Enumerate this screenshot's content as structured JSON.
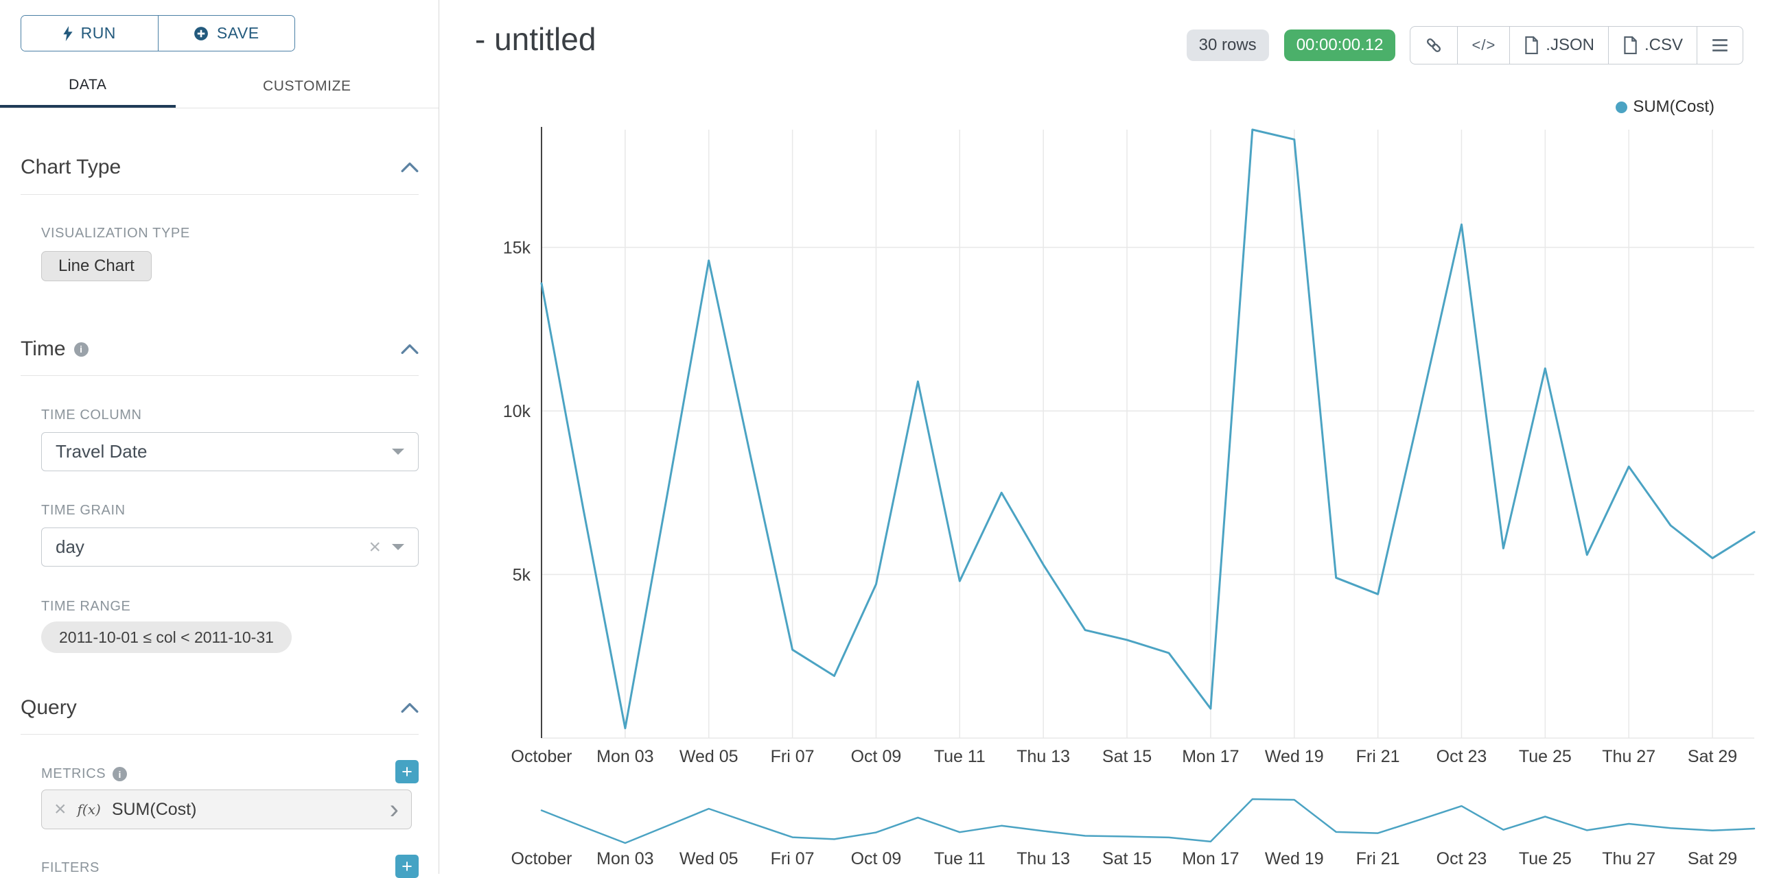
{
  "colors": {
    "line": "#4BA3C3",
    "timer_badge": "#4bb06a",
    "tab_underline": "#1f3b57",
    "run_save_accent": "#235a7d",
    "add_button": "#45a3c4"
  },
  "sidebar": {
    "run_button": {
      "label": "RUN"
    },
    "save_button": {
      "label": "SAVE"
    },
    "tabs": [
      {
        "label": "DATA",
        "active": true
      },
      {
        "label": "CUSTOMIZE",
        "active": false
      }
    ],
    "chart_type_section": {
      "title": "Chart Type",
      "visualization_type": {
        "label": "VISUALIZATION TYPE",
        "value": "Line Chart"
      }
    },
    "time_section": {
      "title": "Time",
      "time_column": {
        "label": "TIME COLUMN",
        "value": "Travel Date"
      },
      "time_grain": {
        "label": "TIME GRAIN",
        "value": "day"
      },
      "time_range": {
        "label": "TIME RANGE",
        "value": "2011-10-01 ≤ col < 2011-10-31"
      }
    },
    "query_section": {
      "title": "Query",
      "metrics": {
        "label": "METRICS",
        "items": [
          {
            "fn": "f(x)",
            "label": "SUM(Cost)"
          }
        ]
      },
      "filters": {
        "label": "FILTERS"
      }
    }
  },
  "header": {
    "title": "- untitled",
    "row_count": "30 rows",
    "query_time": "00:00:00.12",
    "code_icon_text": "</>",
    "export_buttons": [
      ".JSON",
      ".CSV"
    ]
  },
  "legend": {
    "label": "SUM(Cost)",
    "color": "#4BA3C3"
  },
  "chart_data": {
    "type": "line",
    "title": "- untitled",
    "x_grain": "day",
    "x_range": [
      "2011-10-01",
      "2011-10-30"
    ],
    "series": [
      {
        "name": "SUM(Cost)",
        "color": "#4BA3C3",
        "values": [
          13900,
          7000,
          300,
          7400,
          14600,
          8600,
          2700,
          1900,
          4700,
          10900,
          4800,
          7500,
          5300,
          3300,
          3000,
          2600,
          900,
          18600,
          18300,
          4900,
          4400,
          10000,
          15700,
          5800,
          11300,
          5600,
          8300,
          6500,
          5500,
          6300
        ]
      }
    ],
    "x_tick_labels": [
      "October",
      "Mon 03",
      "Wed 05",
      "Fri 07",
      "Oct 09",
      "Tue 11",
      "Thu 13",
      "Sat 15",
      "Mon 17",
      "Wed 19",
      "Fri 21",
      "Oct 23",
      "Tue 25",
      "Thu 27",
      "Sat 29"
    ],
    "x_tick_indices": [
      0,
      2,
      4,
      6,
      8,
      10,
      12,
      14,
      16,
      18,
      20,
      22,
      24,
      26,
      28
    ],
    "y_ticks": [
      {
        "value": 5000,
        "label": "5k"
      },
      {
        "value": 10000,
        "label": "10k"
      },
      {
        "value": 15000,
        "label": "15k"
      }
    ],
    "ylim": [
      0,
      18600
    ],
    "grid": true,
    "legend_position": "top-right",
    "has_context_brush_chart": true
  }
}
